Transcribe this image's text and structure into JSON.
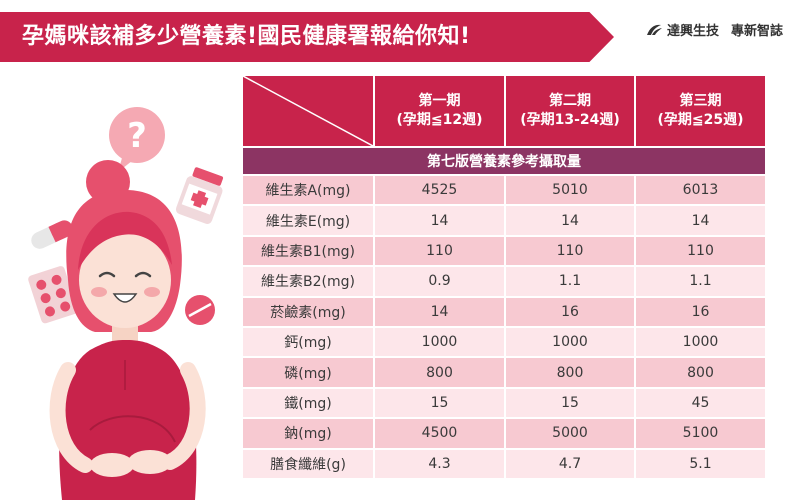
{
  "header": {
    "title": "孕媽咪該補多少營養素!國民健康署報給你知!",
    "brand_logo": "達興生技",
    "brand_sub": "專新智誌"
  },
  "colors": {
    "accent": "#c8234b",
    "subhead": "#8c3463",
    "row_pink": "#f7c9d1",
    "row_light": "#fde6ea"
  },
  "table": {
    "columns": [
      {
        "line1": "第一期",
        "line2": "(孕期≦12週)"
      },
      {
        "line1": "第二期",
        "line2": "(孕期13-24週)"
      },
      {
        "line1": "第三期",
        "line2": "(孕期≦25週)"
      }
    ],
    "subheading": "第七版營養素參考攝取量",
    "rows": [
      {
        "name": "維生素A(mg)",
        "values": [
          "4525",
          "5010",
          "6013"
        ]
      },
      {
        "name": "維生素E(mg)",
        "values": [
          "14",
          "14",
          "14"
        ]
      },
      {
        "name": "維生素B1(mg)",
        "values": [
          "110",
          "110",
          "110"
        ]
      },
      {
        "name": "維生素B2(mg)",
        "values": [
          "0.9",
          "1.1",
          "1.1"
        ]
      },
      {
        "name": "菸鹼素(mg)",
        "values": [
          "14",
          "16",
          "16"
        ]
      },
      {
        "name": "鈣(mg)",
        "values": [
          "1000",
          "1000",
          "1000"
        ]
      },
      {
        "name": "磷(mg)",
        "values": [
          "800",
          "800",
          "800"
        ]
      },
      {
        "name": "鐵(mg)",
        "values": [
          "15",
          "15",
          "45"
        ]
      },
      {
        "name": "鈉(mg)",
        "values": [
          "4500",
          "5000",
          "5100"
        ]
      },
      {
        "name": "膳食纖維(g)",
        "values": [
          "4.3",
          "4.7",
          "5.1"
        ]
      }
    ]
  },
  "illustration": {
    "question_mark": "?"
  }
}
